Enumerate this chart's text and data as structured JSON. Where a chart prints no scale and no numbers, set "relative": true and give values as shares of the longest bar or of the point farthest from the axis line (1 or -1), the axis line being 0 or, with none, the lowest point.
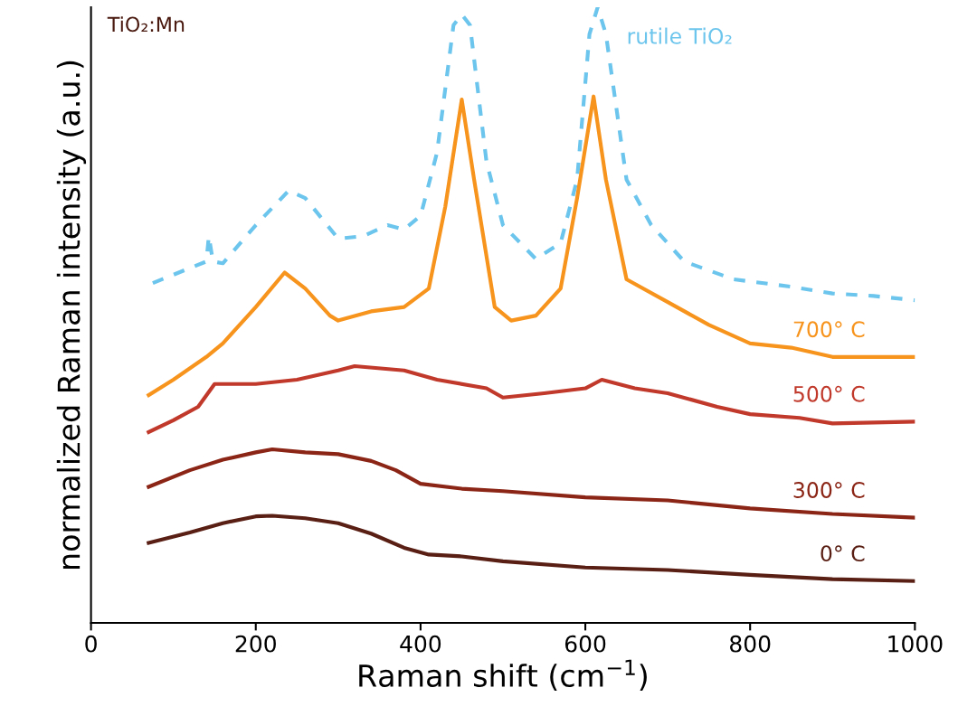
{
  "chart_data": {
    "type": "line",
    "xlabel": "Raman shift (cm$^{−1}$)",
    "ylabel": "normalized Raman intensity (a.u.)",
    "relative": true,
    "xlim": [
      0,
      1000
    ],
    "xticks": [
      0,
      200,
      400,
      600,
      800,
      1000
    ],
    "grid": false,
    "legend": false,
    "marker": "none",
    "annotations": [
      "TiO₂:Mn"
    ],
    "series": [
      {
        "name": "rutile TiO₂",
        "color": "#6cc5ec",
        "line_style": "dashed",
        "x": [
          75,
          140,
          143,
          148,
          160,
          200,
          240,
          260,
          300,
          330,
          360,
          380,
          400,
          420,
          440,
          450,
          460,
          480,
          500,
          540,
          570,
          590,
          605,
          615,
          625,
          650,
          680,
          720,
          780,
          850,
          900,
          950,
          1000
        ],
        "values": [
          0.552,
          0.587,
          0.628,
          0.587,
          0.584,
          0.646,
          0.702,
          0.69,
          0.624,
          0.628,
          0.646,
          0.639,
          0.661,
          0.764,
          0.971,
          0.988,
          0.971,
          0.749,
          0.646,
          0.591,
          0.617,
          0.72,
          0.956,
          1.0,
          0.956,
          0.72,
          0.646,
          0.587,
          0.558,
          0.546,
          0.535,
          0.531,
          0.524
        ]
      },
      {
        "name": "700° C",
        "color": "#f7941d",
        "line_style": "solid",
        "x": [
          70,
          100,
          140,
          160,
          200,
          235,
          260,
          290,
          300,
          340,
          380,
          410,
          430,
          450,
          465,
          490,
          510,
          540,
          570,
          590,
          610,
          625,
          650,
          700,
          750,
          800,
          850,
          900,
          950,
          1000
        ],
        "values": [
          0.37,
          0.395,
          0.432,
          0.454,
          0.513,
          0.569,
          0.543,
          0.499,
          0.491,
          0.506,
          0.513,
          0.543,
          0.676,
          0.85,
          0.72,
          0.513,
          0.491,
          0.499,
          0.543,
          0.69,
          0.855,
          0.72,
          0.558,
          0.521,
          0.484,
          0.454,
          0.447,
          0.432,
          0.432,
          0.432
        ]
      },
      {
        "name": "500° C",
        "color": "#c0392b",
        "line_style": "solid",
        "x": [
          70,
          100,
          130,
          150,
          200,
          250,
          300,
          320,
          380,
          420,
          480,
          500,
          550,
          600,
          620,
          660,
          700,
          760,
          800,
          860,
          900,
          1000
        ],
        "values": [
          0.31,
          0.329,
          0.351,
          0.388,
          0.388,
          0.395,
          0.41,
          0.417,
          0.41,
          0.395,
          0.381,
          0.366,
          0.373,
          0.381,
          0.395,
          0.381,
          0.373,
          0.351,
          0.339,
          0.333,
          0.324,
          0.327
        ]
      },
      {
        "name": "300° C",
        "color": "#8b2515",
        "line_style": "solid",
        "x": [
          70,
          120,
          160,
          200,
          220,
          260,
          300,
          340,
          370,
          400,
          450,
          500,
          600,
          700,
          800,
          900,
          1000
        ],
        "values": [
          0.221,
          0.248,
          0.265,
          0.277,
          0.282,
          0.277,
          0.274,
          0.263,
          0.248,
          0.226,
          0.218,
          0.214,
          0.204,
          0.199,
          0.186,
          0.177,
          0.171
        ]
      },
      {
        "name": "0° C",
        "color": "#5a1f14",
        "line_style": "solid",
        "x": [
          70,
          120,
          160,
          200,
          220,
          260,
          300,
          340,
          380,
          410,
          450,
          500,
          600,
          700,
          800,
          900,
          1000
        ],
        "values": [
          0.13,
          0.147,
          0.162,
          0.173,
          0.174,
          0.17,
          0.162,
          0.145,
          0.122,
          0.111,
          0.108,
          0.1,
          0.09,
          0.086,
          0.078,
          0.071,
          0.068
        ]
      }
    ]
  }
}
